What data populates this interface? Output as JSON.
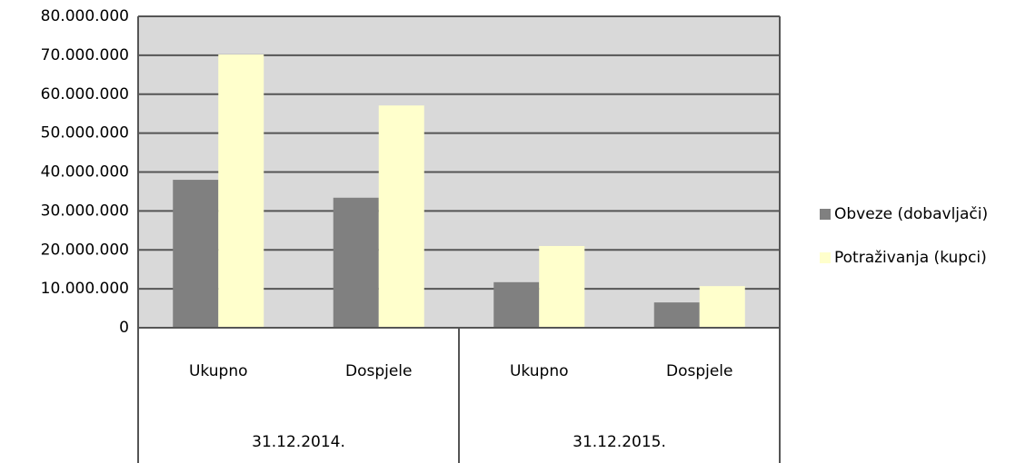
{
  "chart_data": {
    "type": "bar",
    "categories": [
      "Ukupno",
      "Dospjele",
      "Ukupno",
      "Dospjele"
    ],
    "category_groups": [
      "31.12.2014.",
      "31.12.2015."
    ],
    "series": [
      {
        "name": "Obveze (dobavljači)",
        "color": "#808080",
        "values": [
          38000000,
          33400000,
          11700000,
          6500000
        ]
      },
      {
        "name": "Potraživanja (kupci)",
        "color": "#ffffcc",
        "values": [
          70200000,
          57100000,
          21000000,
          10700000
        ]
      }
    ],
    "ylim": [
      0,
      80000000
    ],
    "yticks": [
      0,
      {
        "value": 10000000,
        "label": "10.000.000"
      },
      {
        "value": 20000000,
        "label": "20.000.000"
      },
      {
        "value": 30000000,
        "label": "30.000.000"
      },
      {
        "value": 40000000,
        "label": "40.000.000"
      },
      {
        "value": 50000000,
        "label": "50.000.000"
      },
      {
        "value": 60000000,
        "label": "60.000.000"
      },
      {
        "value": 70000000,
        "label": "70.000.000"
      },
      {
        "value": 80000000,
        "label": "80.000.000"
      }
    ],
    "grid": true,
    "legend": "right"
  }
}
